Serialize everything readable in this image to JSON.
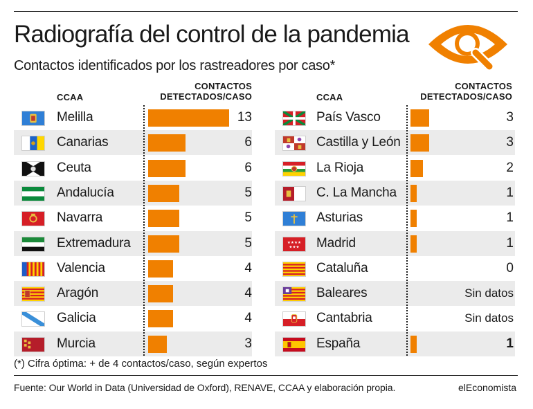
{
  "title": "Radiografía del control de la pandemia",
  "subtitle": "Contactos identificados por los rastreadores por caso*",
  "logo_icon": "eye-magnifier-icon",
  "columns": {
    "region": "CCAA",
    "value": "CONTACTOS\nDETECTADOS/CASO"
  },
  "colors": {
    "bar": "#f08000",
    "stripe": "#ebebeb",
    "text": "#1a1a1a"
  },
  "chart_data": {
    "type": "bar",
    "orientation": "horizontal",
    "groups": [
      {
        "rows": [
          {
            "region": "Melilla",
            "value": 13,
            "label": "13",
            "flag": "flag-melilla"
          },
          {
            "region": "Canarias",
            "value": 6,
            "label": "6",
            "flag": "flag-canarias"
          },
          {
            "region": "Ceuta",
            "value": 6,
            "label": "6",
            "flag": "flag-ceuta"
          },
          {
            "region": "Andalucía",
            "value": 5,
            "label": "5",
            "flag": "flag-andalucia"
          },
          {
            "region": "Navarra",
            "value": 5,
            "label": "5",
            "flag": "flag-navarra"
          },
          {
            "region": "Extremadura",
            "value": 5,
            "label": "5",
            "flag": "flag-extremadura"
          },
          {
            "region": "Valencia",
            "value": 4,
            "label": "4",
            "flag": "flag-valencia"
          },
          {
            "region": "Aragón",
            "value": 4,
            "label": "4",
            "flag": "flag-aragon"
          },
          {
            "region": "Galicia",
            "value": 4,
            "label": "4",
            "flag": "flag-galicia"
          },
          {
            "region": "Murcia",
            "value": 3,
            "label": "3",
            "flag": "flag-murcia"
          }
        ]
      },
      {
        "rows": [
          {
            "region": "País Vasco",
            "value": 3,
            "label": "3",
            "flag": "flag-pais-vasco"
          },
          {
            "region": "Castilla y León",
            "value": 3,
            "label": "3",
            "flag": "flag-castilla-leon"
          },
          {
            "region": "La Rioja",
            "value": 2,
            "label": "2",
            "flag": "flag-la-rioja"
          },
          {
            "region": "C. La Mancha",
            "value": 1,
            "label": "1",
            "flag": "flag-castilla-la-mancha"
          },
          {
            "region": "Asturias",
            "value": 1,
            "label": "1",
            "flag": "flag-asturias"
          },
          {
            "region": "Madrid",
            "value": 1,
            "label": "1",
            "flag": "flag-madrid"
          },
          {
            "region": "Cataluña",
            "value": 0,
            "label": "0",
            "flag": "flag-cataluna"
          },
          {
            "region": "Baleares",
            "value": null,
            "label": "Sin datos",
            "flag": "flag-baleares"
          },
          {
            "region": "Cantabria",
            "value": null,
            "label": "Sin datos",
            "flag": "flag-cantabria"
          },
          {
            "region": "España",
            "value": 1,
            "label": "1",
            "flag": "flag-espana",
            "bold": true
          }
        ]
      }
    ]
  },
  "footnote": "(*) Cifra óptima: + de 4 contactos/caso, según expertos",
  "source": "Fuente: Our World in Data (Universidad de Oxford), RENAVE, CCAA y elaboración propia.",
  "brand": "elEconomista"
}
